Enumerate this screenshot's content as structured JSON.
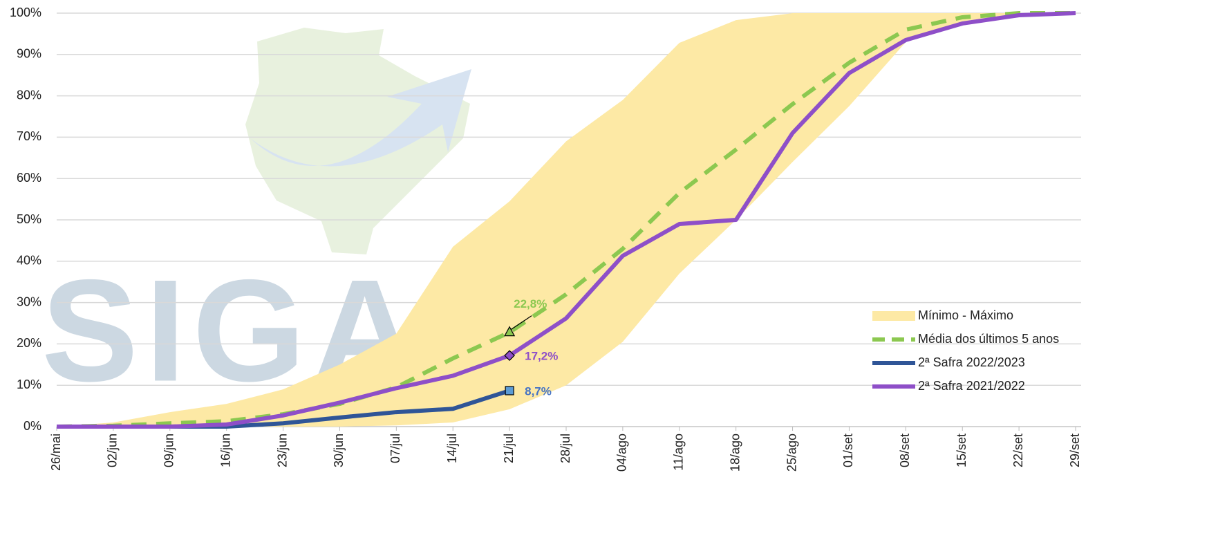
{
  "chart_data": {
    "type": "line",
    "watermark": "SIGA",
    "categories": [
      "26/mai",
      "02/jun",
      "09/jun",
      "16/jun",
      "23/jun",
      "30/jun",
      "07/jul",
      "14/jul",
      "21/jul",
      "28/jul",
      "04/ago",
      "11/ago",
      "18/ago",
      "25/ago",
      "01/set",
      "08/set",
      "15/set",
      "22/set",
      "29/set"
    ],
    "ylim": [
      0,
      100
    ],
    "yticks": [
      {
        "value": 0,
        "label": "0%"
      },
      {
        "value": 10,
        "label": "10%"
      },
      {
        "value": 20,
        "label": "20%"
      },
      {
        "value": 30,
        "label": "30%"
      },
      {
        "value": 40,
        "label": "40%"
      },
      {
        "value": 50,
        "label": "50%"
      },
      {
        "value": 60,
        "label": "60%"
      },
      {
        "value": 70,
        "label": "70%"
      },
      {
        "value": 80,
        "label": "80%"
      },
      {
        "value": 90,
        "label": "90%"
      },
      {
        "value": 100,
        "label": "100%"
      }
    ],
    "grid": true,
    "legend": "lower right",
    "band": {
      "name": "Mínimo - Máximo",
      "color": "#fde9a5",
      "min": [
        0,
        0,
        0,
        0,
        0,
        0,
        0.3,
        1,
        4.2,
        10,
        20.5,
        37,
        50,
        64,
        77.5,
        93,
        98,
        100,
        100
      ],
      "max": [
        0,
        1,
        3.5,
        5.5,
        9,
        15,
        22.5,
        43.5,
        54.5,
        69,
        79,
        92.8,
        98.3,
        100,
        100,
        100,
        100,
        100,
        100
      ]
    },
    "series": [
      {
        "name": "Média dos últimos 5 anos",
        "color": "#8cc850",
        "dash": true,
        "marker": "triangle",
        "values": [
          0,
          0.2,
          0.8,
          1.3,
          3,
          5.5,
          9.5,
          16.5,
          22.8,
          32,
          43,
          56.5,
          67,
          78,
          88,
          96,
          99,
          100,
          100
        ],
        "labels": {
          "8": "22,8%"
        }
      },
      {
        "name": "2ª Safra 2022/2023",
        "color": "#2f5597",
        "marker": "square",
        "values": [
          0,
          0,
          0,
          0,
          0.8,
          2.2,
          3.5,
          4.3,
          8.7,
          null,
          null,
          null,
          null,
          null,
          null,
          null,
          null,
          null,
          null
        ],
        "labels": {
          "8": "8,7%"
        }
      },
      {
        "name": "2ª Safra 2021/2022",
        "color": "#8e4fc8",
        "marker": "diamond",
        "values": [
          0,
          0,
          0,
          0.5,
          2.7,
          5.8,
          9.3,
          12.3,
          17.2,
          26.2,
          41.3,
          49,
          50,
          71,
          85.5,
          93.5,
          97.5,
          99.5,
          100
        ],
        "labels": {
          "8": "17,2%"
        }
      }
    ]
  }
}
